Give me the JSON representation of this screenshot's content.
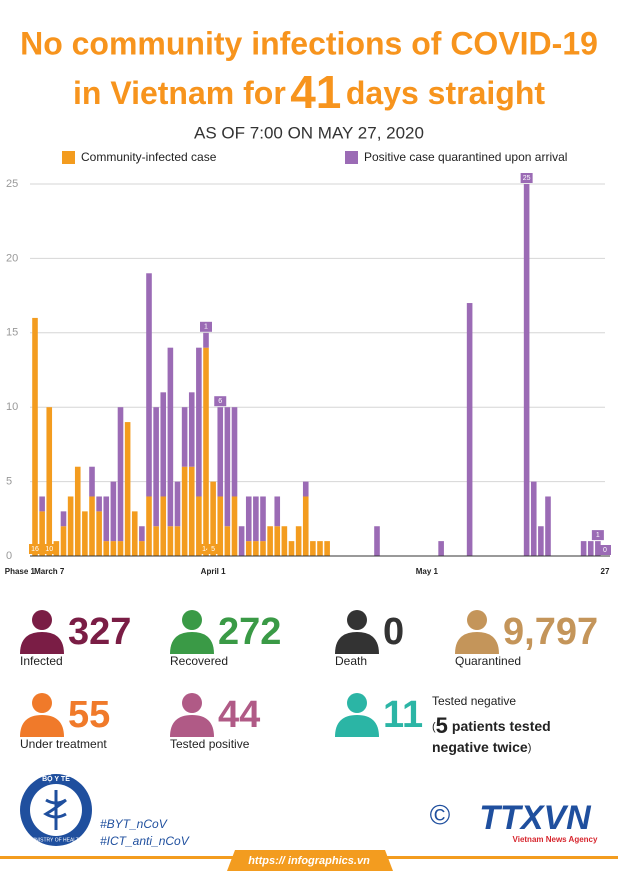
{
  "header": {
    "title_line1": "No community infections of COVID-19",
    "title_pre": "in Vietnam for",
    "title_number": "41",
    "title_post": "days straight",
    "subtitle": "AS OF 7:00 ON MAY 27, 2020"
  },
  "chart_data": {
    "type": "bar",
    "stacked": true,
    "grid": true,
    "ylim": [
      0,
      25
    ],
    "yticks": [
      0,
      5,
      10,
      15,
      20,
      25
    ],
    "categories": [
      "Phase 1",
      null,
      "March 7",
      null,
      null,
      null,
      null,
      null,
      null,
      null,
      null,
      null,
      null,
      null,
      null,
      null,
      null,
      null,
      null,
      null,
      null,
      null,
      null,
      null,
      null,
      "April 1",
      null,
      null,
      null,
      null,
      null,
      null,
      null,
      null,
      null,
      null,
      null,
      null,
      null,
      null,
      null,
      null,
      null,
      null,
      null,
      null,
      null,
      null,
      null,
      null,
      null,
      null,
      null,
      null,
      null,
      "May 1",
      null,
      null,
      null,
      null,
      null,
      null,
      null,
      null,
      null,
      null,
      null,
      null,
      null,
      null,
      null,
      null,
      null,
      null,
      null,
      null,
      null,
      null,
      null,
      null,
      "27"
    ],
    "series": [
      {
        "name": "Community-infected case",
        "color": "#f39c1f",
        "values": [
          16,
          3,
          10,
          1,
          2,
          4,
          6,
          3,
          4,
          3,
          1,
          1,
          1,
          9,
          3,
          1,
          4,
          2,
          4,
          2,
          2,
          6,
          6,
          4,
          14,
          5,
          4,
          2,
          4,
          0,
          1,
          1,
          1,
          2,
          2,
          2,
          1,
          2,
          4,
          1,
          1,
          1,
          0,
          0,
          0,
          0,
          0,
          0,
          0,
          0,
          0,
          0,
          0,
          0,
          0,
          0,
          0,
          0,
          0,
          0,
          0,
          0,
          0,
          0,
          0,
          0,
          0,
          0,
          0,
          0,
          0,
          0,
          0,
          0,
          0,
          0,
          0,
          0,
          0,
          0,
          0
        ],
        "value_labels": [
          "16",
          null,
          "10",
          null,
          null,
          null,
          null,
          null,
          null,
          null,
          null,
          null,
          null,
          null,
          null,
          null,
          null,
          null,
          null,
          null,
          null,
          null,
          null,
          null,
          "14",
          "5",
          null,
          null,
          null,
          null,
          null,
          null,
          null,
          null,
          null,
          null,
          null,
          null,
          null,
          null,
          null,
          null,
          null,
          null,
          null,
          null,
          null,
          null,
          null,
          null,
          null,
          null,
          null,
          null,
          null,
          null,
          null,
          null,
          null,
          null,
          null,
          null,
          null,
          null,
          null,
          null,
          null,
          null,
          null,
          null,
          null,
          null,
          null,
          null,
          null,
          null,
          null,
          null,
          null,
          null,
          null
        ]
      },
      {
        "name": "Positive case quarantined upon arrival",
        "color": "#9b6bb5",
        "values": [
          0,
          1,
          0,
          0,
          1,
          0,
          0,
          0,
          2,
          1,
          3,
          4,
          9,
          0,
          0,
          1,
          15,
          8,
          7,
          12,
          3,
          4,
          5,
          10,
          1,
          0,
          6,
          8,
          6,
          2,
          3,
          3,
          3,
          0,
          2,
          0,
          0,
          0,
          1,
          0,
          0,
          0,
          0,
          0,
          0,
          0,
          0,
          0,
          2,
          0,
          0,
          0,
          0,
          0,
          0,
          0,
          0,
          1,
          0,
          0,
          0,
          17,
          0,
          0,
          0,
          0,
          0,
          0,
          0,
          25,
          5,
          2,
          4,
          0,
          0,
          0,
          0,
          1,
          1,
          1,
          0
        ],
        "value_labels": [
          null,
          null,
          null,
          null,
          null,
          null,
          null,
          null,
          null,
          null,
          null,
          null,
          null,
          null,
          null,
          null,
          null,
          null,
          null,
          null,
          null,
          null,
          null,
          null,
          "1",
          null,
          "6",
          null,
          null,
          null,
          null,
          null,
          null,
          null,
          null,
          null,
          null,
          null,
          null,
          null,
          null,
          null,
          null,
          null,
          null,
          null,
          null,
          null,
          null,
          null,
          null,
          null,
          null,
          null,
          null,
          null,
          null,
          null,
          null,
          null,
          null,
          null,
          null,
          null,
          null,
          null,
          null,
          null,
          null,
          "25",
          null,
          null,
          null,
          null,
          null,
          null,
          null,
          null,
          null,
          "1",
          "0"
        ]
      }
    ]
  },
  "stats": [
    {
      "value": 327,
      "label": "Infected",
      "color": "#7a1d45"
    },
    {
      "value": 272,
      "label": "Recovered",
      "color": "#3a9a46"
    },
    {
      "value": 0,
      "label": "Death",
      "color": "#333333"
    },
    {
      "value": "9,797",
      "label": "Quarantined",
      "color": "#c4955a"
    },
    {
      "value": 55,
      "label": "Under treatment",
      "color": "#f07a2a"
    },
    {
      "value": 44,
      "label": "Tested positive",
      "color": "#b05a86"
    },
    {
      "value": 11,
      "label": "Tested negative",
      "color": "#2bb5a5"
    }
  ],
  "note": {
    "open": "(",
    "number": 5,
    "text1": "patients tested",
    "text2": "negative twice",
    "close": ")"
  },
  "footer": {
    "ministry_top": "BỘ Y TẾ",
    "ministry_bottom": "MINISTRY OF HEALTH",
    "hashtag1": "#BYT_nCoV",
    "hashtag2": "#ICT_anti_nCoV",
    "copyright": "©",
    "agency": "TTXVN",
    "agency_name": "Vietnam News Agency",
    "url": "https:// infographics.vn"
  }
}
